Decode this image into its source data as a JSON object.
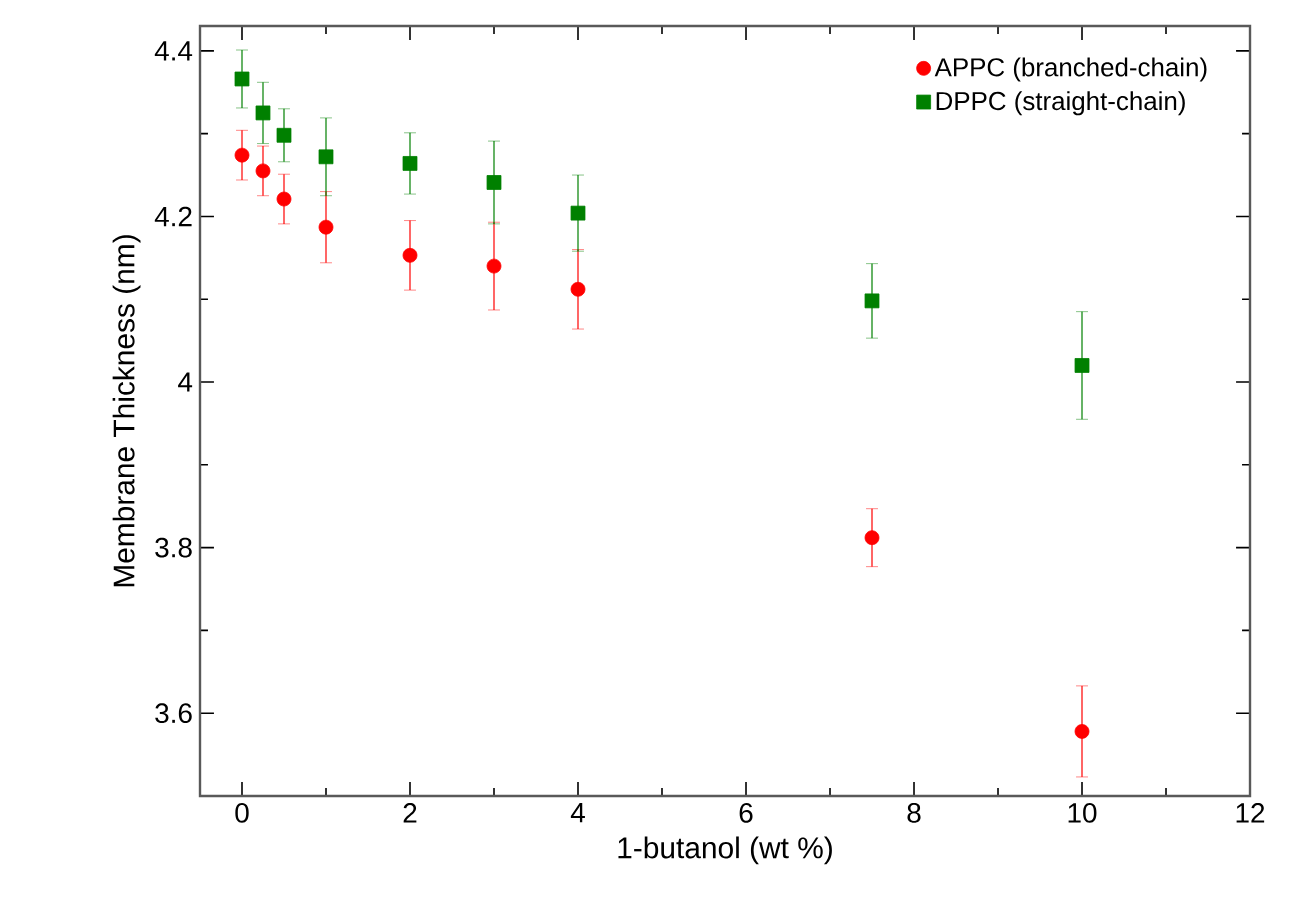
{
  "chart_data": {
    "type": "scatter",
    "xlabel": "1-butanol (wt %)",
    "ylabel": "Membrane Thickness (nm)",
    "xlim": [
      -0.5,
      12
    ],
    "ylim": [
      3.5,
      4.43
    ],
    "xticks": [
      0,
      2,
      4,
      6,
      8,
      10,
      12
    ],
    "yticks": [
      3.6,
      3.8,
      4,
      4.2,
      4.4
    ],
    "x": [
      0,
      0.25,
      0.5,
      1,
      2,
      3,
      4,
      7.5,
      10
    ],
    "legend": "top right",
    "grid": false,
    "series": [
      {
        "name": "APPC (branched-chain)",
        "color": "#ff0000",
        "marker": "circle",
        "values": [
          4.274,
          4.255,
          4.221,
          4.187,
          4.153,
          4.14,
          4.112,
          3.812,
          3.578
        ],
        "errors": [
          0.03,
          0.03,
          0.03,
          0.043,
          0.042,
          0.053,
          0.048,
          0.035,
          0.055
        ]
      },
      {
        "name": "DPPC (straight-chain)",
        "color": "#008000",
        "marker": "square",
        "values": [
          4.366,
          4.325,
          4.298,
          4.272,
          4.264,
          4.241,
          4.204,
          4.098,
          4.02
        ],
        "errors": [
          0.035,
          0.037,
          0.032,
          0.047,
          0.037,
          0.05,
          0.046,
          0.045,
          0.065
        ]
      }
    ]
  }
}
